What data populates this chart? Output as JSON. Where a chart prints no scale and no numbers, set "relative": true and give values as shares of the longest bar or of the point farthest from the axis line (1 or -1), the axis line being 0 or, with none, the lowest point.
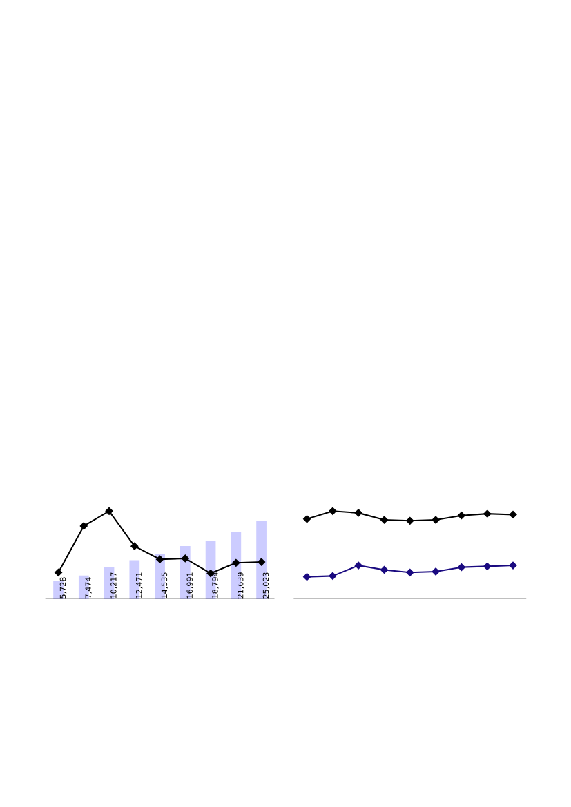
{
  "chart_data": [
    {
      "type": "bar",
      "categories": [
        null,
        null,
        null,
        null,
        null,
        null,
        null,
        null,
        null
      ],
      "tick_labels": false,
      "color": "#ccccff",
      "values": [
        5728,
        7474,
        10217,
        12471,
        14535,
        16991,
        18794,
        21639,
        25023
      ],
      "value_labels": [
        "5,728",
        "7,474",
        "10,217",
        "12,471",
        "14,535",
        "16,991",
        "18,794",
        "21,639",
        "25,023"
      ]
    },
    {
      "type": "line",
      "relative": true,
      "categories": [
        null,
        null,
        null,
        null,
        null,
        null,
        null,
        null,
        null
      ],
      "marker": "diamond",
      "tick_labels": false,
      "series": [
        {
          "color": "#000000",
          "values": [
            0.3,
            0.83,
            1.0,
            0.6,
            0.45,
            0.46,
            0.29,
            0.41,
            0.42
          ]
        }
      ]
    },
    {
      "type": "line",
      "relative": true,
      "categories": [
        null,
        null,
        null,
        null,
        null,
        null,
        null,
        null,
        null
      ],
      "marker": "diamond",
      "tick_labels": false,
      "series": [
        {
          "color": "#000000",
          "values": [
            0.91,
            1.0,
            0.98,
            0.9,
            0.89,
            0.9,
            0.95,
            0.97,
            0.96
          ]
        },
        {
          "color": "#1a0a80",
          "values": [
            0.25,
            0.26,
            0.38,
            0.33,
            0.3,
            0.31,
            0.36,
            0.37,
            0.38
          ]
        }
      ]
    }
  ]
}
